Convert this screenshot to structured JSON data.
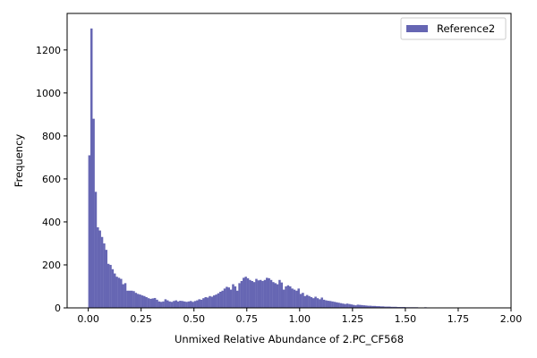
{
  "chart_data": {
    "type": "bar",
    "title": "",
    "xlabel": "Unmixed Relative Abundance of 2.PC_CF568",
    "ylabel": "Frequency",
    "xlim": [
      -0.1,
      2.0
    ],
    "ylim": [
      0,
      1370
    ],
    "xticks": [
      0.0,
      0.25,
      0.5,
      0.75,
      1.0,
      1.25,
      1.5,
      1.75,
      2.0
    ],
    "xtick_labels": [
      "0.00",
      "0.25",
      "0.50",
      "0.75",
      "1.00",
      "1.25",
      "1.50",
      "1.75",
      "2.00"
    ],
    "yticks": [
      0,
      200,
      400,
      600,
      800,
      1000,
      1200
    ],
    "ytick_labels": [
      "0",
      "200",
      "400",
      "600",
      "800",
      "1000",
      "1200"
    ],
    "grid": false,
    "legend_position": "top-right",
    "bin_width": 0.01,
    "series": [
      {
        "name": "Reference2",
        "color": "#6666b3",
        "bin_starts": [
          0.0,
          0.01,
          0.02,
          0.03,
          0.04,
          0.05,
          0.06,
          0.07,
          0.08,
          0.09,
          0.1,
          0.11,
          0.12,
          0.13,
          0.14,
          0.15,
          0.16,
          0.17,
          0.18,
          0.19,
          0.2,
          0.21,
          0.22,
          0.23,
          0.24,
          0.25,
          0.26,
          0.27,
          0.28,
          0.29,
          0.3,
          0.31,
          0.32,
          0.33,
          0.34,
          0.35,
          0.36,
          0.37,
          0.38,
          0.39,
          0.4,
          0.41,
          0.42,
          0.43,
          0.44,
          0.45,
          0.46,
          0.47,
          0.48,
          0.49,
          0.5,
          0.51,
          0.52,
          0.53,
          0.54,
          0.55,
          0.56,
          0.57,
          0.58,
          0.59,
          0.6,
          0.61,
          0.62,
          0.63,
          0.64,
          0.65,
          0.66,
          0.67,
          0.68,
          0.69,
          0.7,
          0.71,
          0.72,
          0.73,
          0.74,
          0.75,
          0.76,
          0.77,
          0.78,
          0.79,
          0.8,
          0.81,
          0.82,
          0.83,
          0.84,
          0.85,
          0.86,
          0.87,
          0.88,
          0.89,
          0.9,
          0.91,
          0.92,
          0.93,
          0.94,
          0.95,
          0.96,
          0.97,
          0.98,
          0.99,
          1.0,
          1.01,
          1.02,
          1.03,
          1.04,
          1.05,
          1.06,
          1.07,
          1.08,
          1.09,
          1.1,
          1.11,
          1.12,
          1.13,
          1.14,
          1.15,
          1.16,
          1.17,
          1.18,
          1.19,
          1.2,
          1.21,
          1.22,
          1.23,
          1.24,
          1.25,
          1.26,
          1.27,
          1.28,
          1.29,
          1.3,
          1.31,
          1.32,
          1.33,
          1.34,
          1.35,
          1.36,
          1.37,
          1.38,
          1.39,
          1.4,
          1.41,
          1.42,
          1.43,
          1.44,
          1.45,
          1.46,
          1.47,
          1.48,
          1.49,
          1.5,
          1.51,
          1.52,
          1.53,
          1.54,
          1.55,
          1.56,
          1.57,
          1.58,
          1.59,
          1.6,
          1.61,
          1.62,
          1.63,
          1.64,
          1.65,
          1.66,
          1.67,
          1.68,
          1.69,
          1.7,
          1.71,
          1.72,
          1.73,
          1.74,
          1.75,
          1.76,
          1.77,
          1.78,
          1.79,
          1.8,
          1.81,
          1.82,
          1.83,
          1.84,
          1.85,
          1.86,
          1.87,
          1.88,
          1.89,
          1.9,
          1.91,
          1.92,
          1.93,
          1.94,
          1.95,
          1.96,
          1.97,
          1.98,
          1.99
        ],
        "values": [
          710,
          1300,
          880,
          540,
          375,
          360,
          330,
          300,
          270,
          205,
          200,
          180,
          160,
          145,
          140,
          135,
          110,
          115,
          80,
          80,
          80,
          78,
          70,
          65,
          62,
          58,
          55,
          50,
          45,
          42,
          44,
          46,
          38,
          30,
          28,
          30,
          40,
          35,
          30,
          28,
          32,
          35,
          30,
          33,
          32,
          30,
          28,
          30,
          32,
          28,
          32,
          35,
          40,
          38,
          45,
          50,
          48,
          55,
          52,
          58,
          62,
          68,
          75,
          80,
          90,
          98,
          95,
          85,
          110,
          100,
          80,
          115,
          125,
          140,
          145,
          138,
          130,
          125,
          120,
          135,
          128,
          130,
          125,
          130,
          140,
          138,
          130,
          120,
          115,
          110,
          130,
          118,
          85,
          100,
          105,
          100,
          90,
          85,
          80,
          90,
          65,
          70,
          55,
          60,
          55,
          50,
          45,
          52,
          45,
          40,
          48,
          38,
          35,
          33,
          32,
          30,
          28,
          26,
          24,
          22,
          20,
          18,
          20,
          18,
          16,
          14,
          12,
          15,
          14,
          13,
          12,
          11,
          10,
          10,
          9,
          9,
          8,
          8,
          7,
          7,
          6,
          6,
          6,
          5,
          5,
          5,
          4,
          4,
          4,
          4,
          3,
          3,
          3,
          3,
          3,
          3,
          2,
          2,
          2,
          3,
          2,
          2,
          2,
          2,
          2,
          1,
          2,
          1,
          2,
          1,
          1,
          2,
          1,
          1,
          1,
          1,
          1,
          1,
          1,
          0,
          1,
          1,
          1,
          0,
          0,
          1,
          0,
          1,
          0,
          0,
          1,
          0,
          0,
          0,
          0,
          0,
          0,
          1,
          0,
          0,
          0,
          0,
          0,
          0
        ]
      }
    ]
  }
}
